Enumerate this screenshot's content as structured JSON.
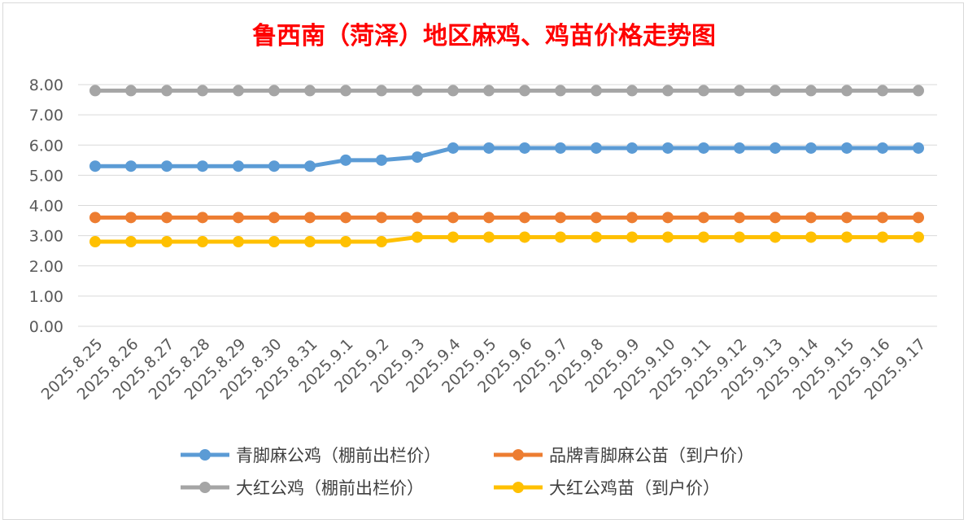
{
  "chart_data": {
    "type": "line",
    "title": "鲁西南（菏泽）地区麻鸡、鸡苗价格走势图",
    "title_color": "#ff0000",
    "categories": [
      "2025.8.25",
      "2025.8.26",
      "2025.8.27",
      "2025.8.28",
      "2025.8.29",
      "2025.8.30",
      "2025.8.31",
      "2025.9.1",
      "2025.9.2",
      "2025.9.3",
      "2025.9.4",
      "2025.9.5",
      "2025.9.6",
      "2025.9.7",
      "2025.9.8",
      "2025.9.9",
      "2025.9.10",
      "2025.9.11",
      "2025.9.12",
      "2025.9.13",
      "2025.9.14",
      "2025.9.15",
      "2025.9.16",
      "2025.9.17"
    ],
    "y_ticks": [
      "0.00",
      "1.00",
      "2.00",
      "3.00",
      "4.00",
      "5.00",
      "6.00",
      "7.00",
      "8.00"
    ],
    "ylim": [
      0,
      8
    ],
    "grid": true,
    "legend_position": "bottom",
    "series": [
      {
        "name": "青脚麻公鸡（棚前出栏价）",
        "color": "#5b9bd5",
        "values": [
          5.3,
          5.3,
          5.3,
          5.3,
          5.3,
          5.3,
          5.3,
          5.5,
          5.5,
          5.6,
          5.9,
          5.9,
          5.9,
          5.9,
          5.9,
          5.9,
          5.9,
          5.9,
          5.9,
          5.9,
          5.9,
          5.9,
          5.9,
          5.9
        ]
      },
      {
        "name": "品牌青脚麻公苗（到户价）",
        "color": "#ed7d31",
        "values": [
          3.6,
          3.6,
          3.6,
          3.6,
          3.6,
          3.6,
          3.6,
          3.6,
          3.6,
          3.6,
          3.6,
          3.6,
          3.6,
          3.6,
          3.6,
          3.6,
          3.6,
          3.6,
          3.6,
          3.6,
          3.6,
          3.6,
          3.6,
          3.6
        ]
      },
      {
        "name": "大红公鸡（棚前出栏价）",
        "color": "#a5a5a5",
        "values": [
          7.8,
          7.8,
          7.8,
          7.8,
          7.8,
          7.8,
          7.8,
          7.8,
          7.8,
          7.8,
          7.8,
          7.8,
          7.8,
          7.8,
          7.8,
          7.8,
          7.8,
          7.8,
          7.8,
          7.8,
          7.8,
          7.8,
          7.8,
          7.8
        ]
      },
      {
        "name": "大红公鸡苗（到户价）",
        "color": "#ffc000",
        "values": [
          2.8,
          2.8,
          2.8,
          2.8,
          2.8,
          2.8,
          2.8,
          2.8,
          2.8,
          2.95,
          2.95,
          2.95,
          2.95,
          2.95,
          2.95,
          2.95,
          2.95,
          2.95,
          2.95,
          2.95,
          2.95,
          2.95,
          2.95,
          2.95
        ]
      }
    ]
  }
}
